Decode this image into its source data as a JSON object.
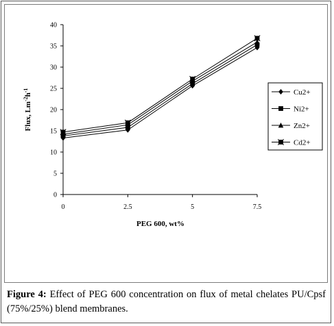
{
  "chart_data": {
    "type": "line",
    "title": "",
    "xlabel": "PEG 600, wt%",
    "ylabel": "Flux, Lm⁻²h⁻¹",
    "ylabel_main": "Flux, Lm",
    "ylabel_sup1": "-2",
    "ylabel_mid": "h",
    "ylabel_sup2": "-1",
    "x": [
      0,
      2.5,
      5,
      7.5
    ],
    "x_tick_labels": [
      "0",
      "2.5",
      "5",
      "7.5"
    ],
    "ylim": [
      0,
      40
    ],
    "y_ticks": [
      0,
      5,
      10,
      15,
      20,
      25,
      30,
      35,
      40
    ],
    "y_tick_labels": [
      "0",
      "5",
      "10",
      "15",
      "20",
      "25",
      "30",
      "35",
      "40"
    ],
    "grid": false,
    "legend_position": "right",
    "series": [
      {
        "name": "Cu2+",
        "marker": "diamond",
        "values": [
          13.3,
          15.2,
          25.6,
          34.6
        ]
      },
      {
        "name": "Ni2+",
        "marker": "square",
        "values": [
          13.8,
          15.8,
          26.1,
          35.3
        ]
      },
      {
        "name": "Zn2+",
        "marker": "triangle",
        "values": [
          14.2,
          16.4,
          26.7,
          35.9
        ]
      },
      {
        "name": "Cd2+",
        "marker": "x-square",
        "values": [
          14.7,
          16.9,
          27.2,
          36.8
        ]
      }
    ]
  },
  "caption": {
    "label": "Figure 4:",
    "text": " Effect of PEG 600 concentration on flux of metal chelates PU/Cpsf (75%/25%) blend membranes."
  }
}
